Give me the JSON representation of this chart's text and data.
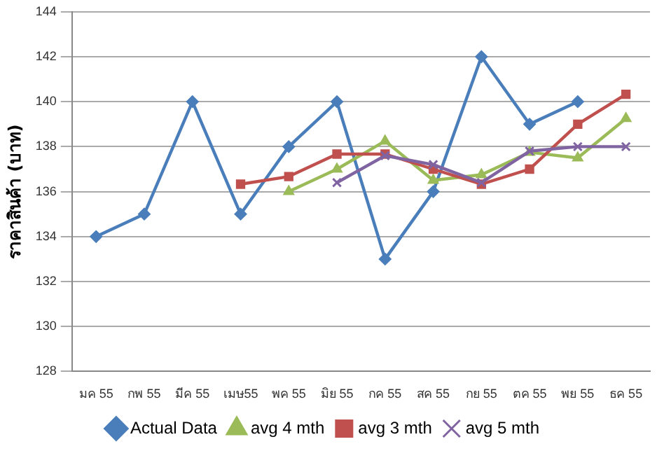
{
  "chart_data": {
    "type": "line",
    "ylabel": "ราคาสินค้า (บาท)",
    "categories": [
      "มค 55",
      "กพ 55",
      "มีค 55",
      "เมษ55",
      "พค 55",
      "มิย 55",
      "กค 55",
      "สค 55",
      "กย 55",
      "ตค 55",
      "พย 55",
      "ธค 55"
    ],
    "series": [
      {
        "name": "Actual Data",
        "color": "#4a7ebb",
        "marker": "diamond",
        "values": [
          134,
          135,
          140,
          135,
          138,
          140,
          133,
          136,
          142,
          139,
          140,
          null
        ]
      },
      {
        "name": "avg 4 mth",
        "color": "#9bbb59",
        "marker": "triangle",
        "values": [
          null,
          null,
          null,
          null,
          136,
          137,
          138.25,
          136.5,
          136.75,
          137.75,
          137.5,
          139.25
        ]
      },
      {
        "name": "avg 3 mth",
        "color": "#c0504d",
        "marker": "square",
        "values": [
          null,
          null,
          null,
          136.33,
          136.67,
          137.67,
          137.67,
          137,
          136.33,
          137,
          139,
          140.33
        ]
      },
      {
        "name": "avg 5 mth",
        "color": "#8064a2",
        "marker": "cross",
        "values": [
          null,
          null,
          null,
          null,
          null,
          136.4,
          137.6,
          137.2,
          136.4,
          137.8,
          138,
          138
        ]
      }
    ],
    "ylim": [
      128,
      144
    ],
    "yticks": [
      128,
      130,
      132,
      134,
      136,
      138,
      140,
      142,
      144
    ],
    "grid": "y",
    "legend": "bottom"
  }
}
